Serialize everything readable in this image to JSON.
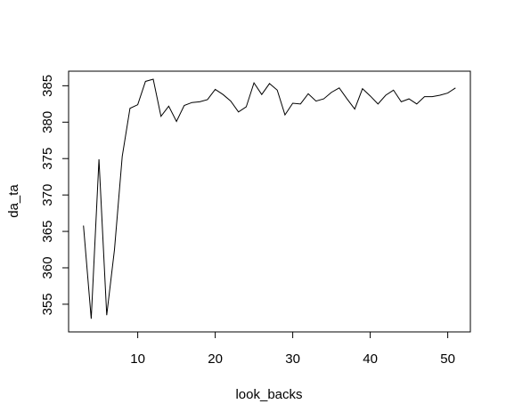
{
  "chart_data": {
    "type": "line",
    "title": "",
    "xlabel": "look_backs",
    "ylabel": "da_ta",
    "xlim": [
      1.08,
      52.92
    ],
    "ylim": [
      351.2,
      387.0
    ],
    "x_ticks": [
      10,
      20,
      30,
      40,
      50
    ],
    "y_ticks": [
      355,
      360,
      365,
      370,
      375,
      380,
      385
    ],
    "grid": false,
    "legend": "none",
    "line_color": "#000000",
    "series": [
      {
        "x": [
          3,
          4,
          5,
          6,
          7,
          8,
          9,
          10,
          11,
          12,
          13,
          14,
          15,
          16,
          17,
          18,
          19,
          20,
          21,
          22,
          23,
          24,
          25,
          26,
          27,
          28,
          29,
          30,
          31,
          32,
          33,
          34,
          35,
          36,
          37,
          38,
          39,
          40,
          41,
          42,
          43,
          44,
          45,
          46,
          47,
          48,
          49,
          50,
          51
        ],
        "values": [
          365.8,
          353.0,
          374.9,
          353.5,
          362.5,
          375.3,
          381.9,
          382.4,
          385.6,
          385.9,
          380.8,
          382.2,
          380.1,
          382.3,
          382.7,
          382.8,
          383.1,
          384.5,
          383.8,
          382.9,
          381.4,
          382.1,
          385.4,
          383.8,
          385.3,
          384.4,
          381.0,
          382.6,
          382.5,
          383.9,
          382.9,
          383.2,
          384.1,
          384.7,
          383.2,
          381.8,
          384.6,
          383.6,
          382.5,
          383.7,
          384.4,
          382.8,
          383.2,
          382.5,
          383.5,
          383.5,
          383.7,
          384.0,
          384.7
        ]
      }
    ]
  }
}
